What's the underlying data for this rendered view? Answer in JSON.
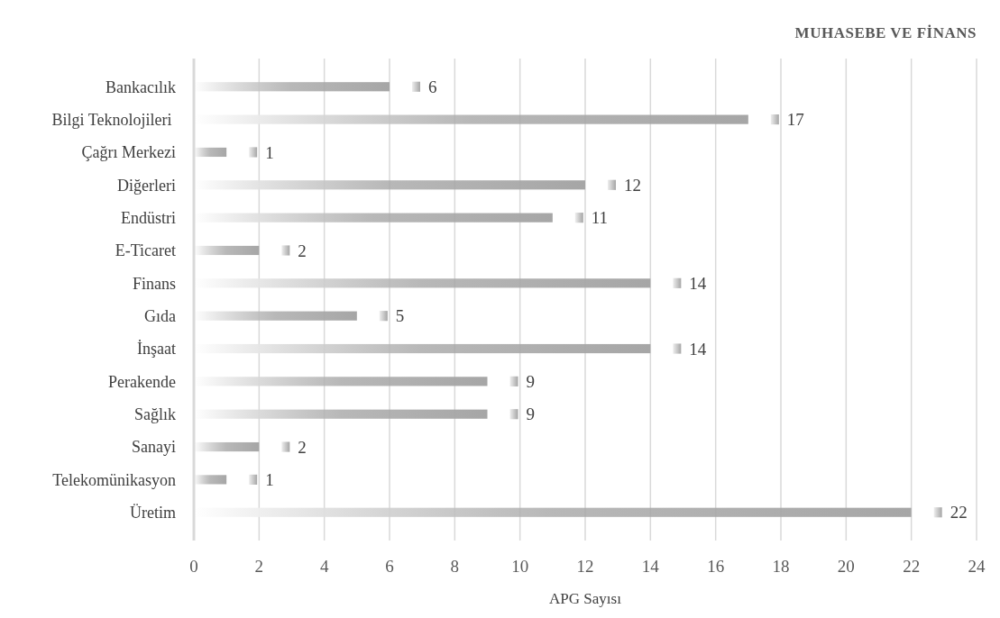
{
  "chart_data": {
    "type": "bar",
    "orientation": "horizontal",
    "title": "MUHASEBE VE FİNANS",
    "xlabel": "APG Sayısı",
    "categories": [
      "Bankacılık",
      "Bilgi Teknolojileri ",
      "Çağrı Merkezi",
      "Diğerleri",
      "Endüstri",
      "E-Ticaret",
      "Finans",
      "Gıda",
      "İnşaat",
      "Perakende",
      "Sağlık",
      "Sanayi",
      "Telekomünikasyon",
      "Üretim"
    ],
    "values": [
      6,
      17,
      1,
      12,
      11,
      2,
      14,
      5,
      14,
      9,
      9,
      2,
      1,
      22
    ],
    "color": "#a6a6a6",
    "xlim": [
      0,
      24
    ],
    "xticks": [
      0,
      2,
      4,
      6,
      8,
      10,
      12,
      14,
      16,
      18,
      20,
      22,
      24
    ],
    "grid": "x",
    "data_labels": true
  }
}
